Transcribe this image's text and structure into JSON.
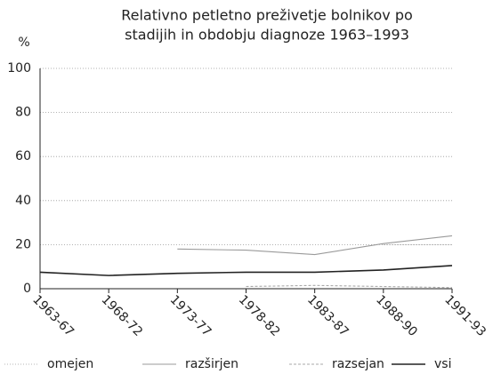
{
  "chart_data": {
    "type": "line",
    "title_lines": [
      "Relativno petletno preživetje bolnikov po",
      "stadijih in obdobju diagnoze 1963–1993"
    ],
    "y_label": "%",
    "categories": [
      "1963-67",
      "1968-72",
      "1973-77",
      "1978-82",
      "1983-87",
      "1988-90",
      "1991-93"
    ],
    "series": [
      {
        "name": "omejen",
        "color": "#b5b5b5",
        "dash": "1 2",
        "values": [
          null,
          null,
          null,
          null,
          null,
          20,
          20
        ]
      },
      {
        "name": "razširjen",
        "color": "#9a9a9a",
        "dash": "",
        "values": [
          null,
          null,
          18,
          17.5,
          15.5,
          20.5,
          24
        ]
      },
      {
        "name": "razsejan",
        "color": "#a8a8a8",
        "dash": "3 2",
        "values": [
          null,
          null,
          null,
          1,
          1.5,
          1,
          0.5
        ]
      },
      {
        "name": "vsi",
        "color": "#222222",
        "dash": "",
        "values": [
          7.5,
          6,
          7,
          7.5,
          7.5,
          8.5,
          10.5
        ]
      }
    ],
    "ylim": [
      0,
      100
    ],
    "yticks": [
      0,
      20,
      40,
      60,
      80,
      100
    ],
    "grid": true
  }
}
